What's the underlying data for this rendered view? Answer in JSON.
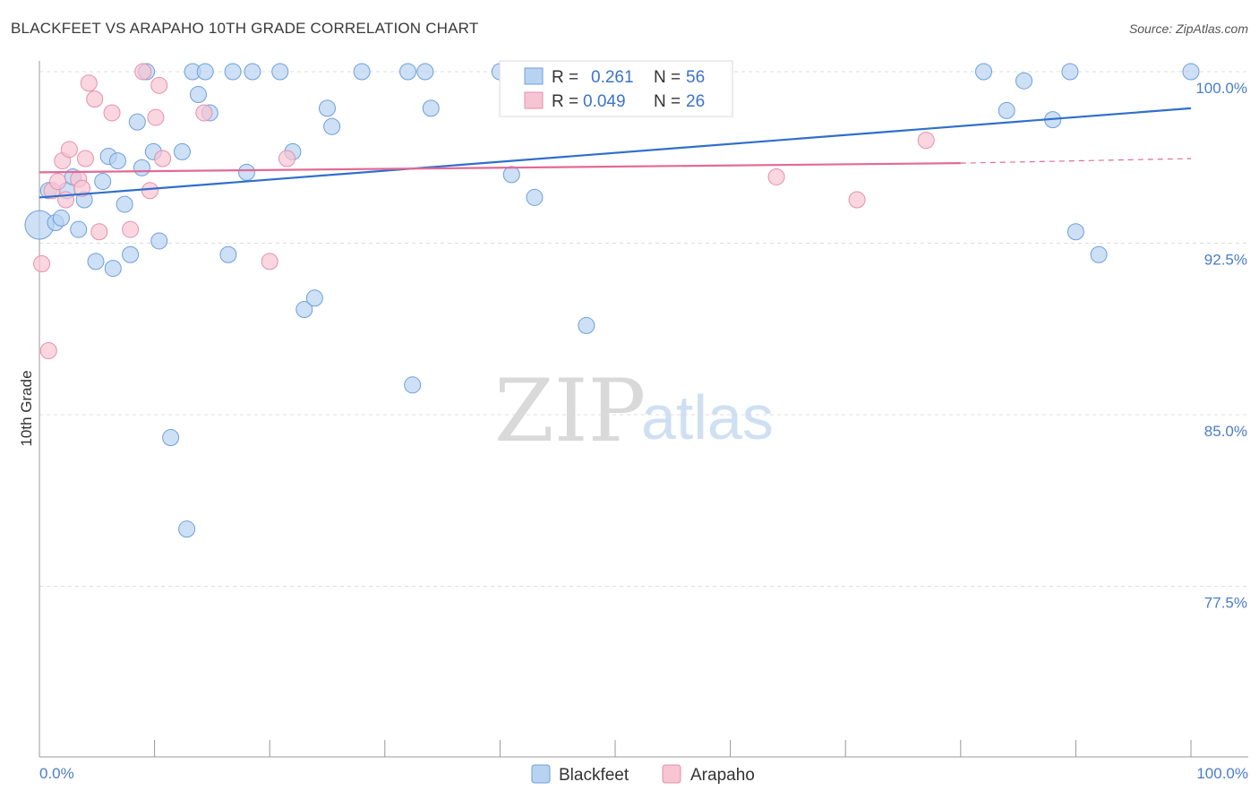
{
  "header": {
    "title": "BLACKFEET VS ARAPAHO 10TH GRADE CORRELATION CHART",
    "source": "Source: ZipAtlas.com"
  },
  "watermark": {
    "zip": "ZIP",
    "atlas": "atlas"
  },
  "colors": {
    "blackfeet_fill": "#b8d3f2",
    "blackfeet_stroke": "#6f9fd8",
    "blackfeet_line": "#2f6fcb",
    "arapaho_fill": "#f6c4d3",
    "arapaho_stroke": "#e590ad",
    "arapaho_line": "#e26a94",
    "tick_text": "#4a7cc9",
    "grid": "#dddddd"
  },
  "legend": {
    "rows": [
      {
        "r_label": "R =",
        "r_value": "0.261",
        "n_label": "N =",
        "n_value": "56"
      },
      {
        "r_label": "R =",
        "r_value": "0.049",
        "n_label": "N =",
        "n_value": "26"
      }
    ],
    "bottom": [
      "Blackfeet",
      "Arapaho"
    ]
  },
  "chart_data": {
    "type": "scatter",
    "title": "BLACKFEET VS ARAPAHO 10TH GRADE CORRELATION CHART",
    "xlabel": "",
    "ylabel": "10th Grade",
    "xlim": [
      0,
      100
    ],
    "ylim": [
      70.0,
      101.0
    ],
    "x_tick_labels": [
      "0.0%",
      "100.0%"
    ],
    "y_ticks": [
      100.0,
      92.5,
      85.0,
      77.5
    ],
    "y_tick_labels": [
      "100.0%",
      "92.5%",
      "85.0%",
      "77.5%"
    ],
    "grid": true,
    "legend_position": "top-center",
    "series": [
      {
        "name": "Blackfeet",
        "R": 0.261,
        "N": 56,
        "trend": {
          "x": [
            0,
            100
          ],
          "y": [
            94.5,
            98.4
          ]
        },
        "points": [
          {
            "x": 0.0,
            "y": 93.3,
            "big": true
          },
          {
            "x": 0.8,
            "y": 94.8
          },
          {
            "x": 1.4,
            "y": 93.4
          },
          {
            "x": 1.9,
            "y": 93.6
          },
          {
            "x": 2.4,
            "y": 94.8
          },
          {
            "x": 2.9,
            "y": 95.4
          },
          {
            "x": 3.4,
            "y": 93.1
          },
          {
            "x": 3.9,
            "y": 94.4
          },
          {
            "x": 4.9,
            "y": 91.7
          },
          {
            "x": 5.5,
            "y": 95.2
          },
          {
            "x": 6.0,
            "y": 96.3
          },
          {
            "x": 6.4,
            "y": 91.4
          },
          {
            "x": 6.8,
            "y": 96.1
          },
          {
            "x": 7.4,
            "y": 94.2
          },
          {
            "x": 7.9,
            "y": 92.0
          },
          {
            "x": 8.5,
            "y": 97.8
          },
          {
            "x": 8.9,
            "y": 95.8
          },
          {
            "x": 9.3,
            "y": 100.0
          },
          {
            "x": 9.9,
            "y": 96.5
          },
          {
            "x": 10.4,
            "y": 92.6
          },
          {
            "x": 11.4,
            "y": 84.0
          },
          {
            "x": 12.4,
            "y": 96.5
          },
          {
            "x": 12.8,
            "y": 80.0
          },
          {
            "x": 13.3,
            "y": 100.0
          },
          {
            "x": 13.8,
            "y": 99.0
          },
          {
            "x": 14.4,
            "y": 100.0
          },
          {
            "x": 14.8,
            "y": 98.2
          },
          {
            "x": 16.4,
            "y": 92.0
          },
          {
            "x": 16.8,
            "y": 100.0
          },
          {
            "x": 18.0,
            "y": 95.6
          },
          {
            "x": 20.9,
            "y": 100.0
          },
          {
            "x": 22.0,
            "y": 96.5
          },
          {
            "x": 23.0,
            "y": 89.6
          },
          {
            "x": 23.9,
            "y": 90.1
          },
          {
            "x": 25.0,
            "y": 98.4
          },
          {
            "x": 25.4,
            "y": 97.6
          },
          {
            "x": 28.0,
            "y": 100.0
          },
          {
            "x": 32.0,
            "y": 100.0
          },
          {
            "x": 32.4,
            "y": 86.3
          },
          {
            "x": 33.5,
            "y": 100.0
          },
          {
            "x": 34.0,
            "y": 98.4
          },
          {
            "x": 40.0,
            "y": 100.0
          },
          {
            "x": 41.0,
            "y": 95.5
          },
          {
            "x": 43.0,
            "y": 94.5
          },
          {
            "x": 47.0,
            "y": 100.0
          },
          {
            "x": 47.5,
            "y": 88.9
          },
          {
            "x": 50.0,
            "y": 100.0
          },
          {
            "x": 82.0,
            "y": 100.0
          },
          {
            "x": 84.0,
            "y": 98.3
          },
          {
            "x": 85.5,
            "y": 99.6
          },
          {
            "x": 88.0,
            "y": 97.9
          },
          {
            "x": 89.5,
            "y": 100.0
          },
          {
            "x": 90.0,
            "y": 93.0
          },
          {
            "x": 92.0,
            "y": 92.0
          },
          {
            "x": 100.0,
            "y": 100.0
          },
          {
            "x": 18.5,
            "y": 100.0
          }
        ]
      },
      {
        "name": "Arapaho",
        "R": 0.049,
        "N": 26,
        "trend": {
          "x": [
            0,
            80
          ],
          "y": [
            95.6,
            96.0
          ],
          "dashed_to": [
            100,
            96.2
          ]
        },
        "points": [
          {
            "x": 0.2,
            "y": 91.6
          },
          {
            "x": 0.8,
            "y": 87.8
          },
          {
            "x": 1.1,
            "y": 94.8
          },
          {
            "x": 1.6,
            "y": 95.2
          },
          {
            "x": 2.0,
            "y": 96.1
          },
          {
            "x": 2.3,
            "y": 94.4
          },
          {
            "x": 2.6,
            "y": 96.6
          },
          {
            "x": 3.4,
            "y": 95.3
          },
          {
            "x": 3.7,
            "y": 94.9
          },
          {
            "x": 4.0,
            "y": 96.2
          },
          {
            "x": 4.3,
            "y": 99.5
          },
          {
            "x": 4.8,
            "y": 98.8
          },
          {
            "x": 5.2,
            "y": 93.0
          },
          {
            "x": 6.3,
            "y": 98.2
          },
          {
            "x": 7.9,
            "y": 93.1
          },
          {
            "x": 9.0,
            "y": 100.0
          },
          {
            "x": 9.6,
            "y": 94.8
          },
          {
            "x": 10.1,
            "y": 98.0
          },
          {
            "x": 10.4,
            "y": 99.4
          },
          {
            "x": 10.7,
            "y": 96.2
          },
          {
            "x": 14.3,
            "y": 98.2
          },
          {
            "x": 20.0,
            "y": 91.7
          },
          {
            "x": 21.5,
            "y": 96.2
          },
          {
            "x": 64.0,
            "y": 95.4
          },
          {
            "x": 71.0,
            "y": 94.4
          },
          {
            "x": 77.0,
            "y": 97.0
          }
        ]
      }
    ]
  }
}
